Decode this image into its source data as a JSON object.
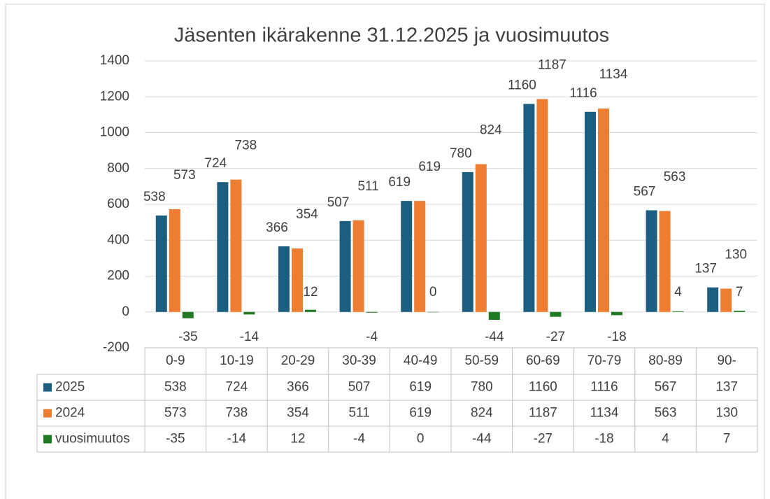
{
  "chart_data": {
    "type": "bar",
    "title": "Jäsenten ikärakenne 31.12.2025 ja vuosimuutos",
    "categories": [
      "0-9",
      "10-19",
      "20-29",
      "30-39",
      "40-49",
      "50-59",
      "60-69",
      "70-79",
      "80-89",
      "90-"
    ],
    "series": [
      {
        "name": "2025",
        "color": "#1b5e7f",
        "values": [
          538,
          724,
          366,
          507,
          619,
          780,
          1160,
          1116,
          567,
          137
        ]
      },
      {
        "name": "2024",
        "color": "#ed7d31",
        "values": [
          573,
          738,
          354,
          511,
          619,
          824,
          1187,
          1134,
          563,
          130
        ]
      },
      {
        "name": "vuosimuutos",
        "color": "#1f7a23",
        "values": [
          -35,
          -14,
          12,
          -4,
          0,
          -44,
          -27,
          -18,
          4,
          7
        ]
      }
    ],
    "ylim": [
      -200,
      1400
    ],
    "yticks": [
      -200,
      0,
      200,
      400,
      600,
      800,
      1000,
      1200,
      1400
    ],
    "grid": true,
    "data_table": true
  }
}
